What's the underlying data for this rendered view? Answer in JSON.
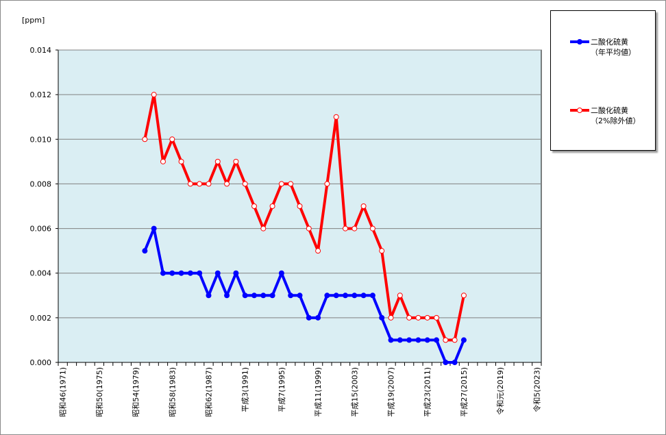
{
  "chart_data": {
    "type": "line",
    "unit_label": "[ppm]",
    "ylim": [
      0,
      0.014
    ],
    "yticks": [
      "0.000",
      "0.002",
      "0.004",
      "0.006",
      "0.008",
      "0.010",
      "0.012",
      "0.014"
    ],
    "x_start_year": 1971,
    "x_end_year": 2023,
    "xtick_labels": [
      "昭和46(1971)",
      "昭和50(1975)",
      "昭和54(1979)",
      "昭和58(1983)",
      "昭和62(1987)",
      "平成3(1991)",
      "平成7(1995)",
      "平成11(1999)",
      "平成15(2003)",
      "平成19(2007)",
      "平成23(2011)",
      "平成27(2015)",
      "令和元(2019)",
      "令和5(2023)"
    ],
    "grid": true,
    "legend_position": "right",
    "x": [
      1980,
      1981,
      1982,
      1983,
      1984,
      1985,
      1986,
      1987,
      1988,
      1989,
      1990,
      1991,
      1992,
      1993,
      1994,
      1995,
      1996,
      1997,
      1998,
      1999,
      2000,
      2001,
      2002,
      2003,
      2004,
      2005,
      2006,
      2007,
      2008,
      2009,
      2010,
      2011,
      2012,
      2013,
      2014,
      2015
    ],
    "series": [
      {
        "name": "二酸化硫黄",
        "name2": "（年平均値）",
        "color": "#0000ff",
        "marker": "filled",
        "values": [
          0.005,
          0.006,
          0.004,
          0.004,
          0.004,
          0.004,
          0.004,
          0.003,
          0.004,
          0.003,
          0.004,
          0.003,
          0.003,
          0.003,
          0.003,
          0.004,
          0.003,
          0.003,
          0.002,
          0.002,
          0.003,
          0.003,
          0.003,
          0.003,
          0.003,
          0.003,
          0.002,
          0.001,
          0.001,
          0.001,
          0.001,
          0.001,
          0.001,
          0.0,
          0.0,
          0.001
        ]
      },
      {
        "name": "二酸化硫黄",
        "name2": "（2%除外値）",
        "color": "#ff0000",
        "marker": "open",
        "values": [
          0.01,
          0.012,
          0.009,
          0.01,
          0.009,
          0.008,
          0.008,
          0.008,
          0.009,
          0.008,
          0.009,
          0.008,
          0.007,
          0.006,
          0.007,
          0.008,
          0.008,
          0.007,
          0.006,
          0.005,
          0.008,
          0.011,
          0.006,
          0.006,
          0.007,
          0.006,
          0.005,
          0.002,
          0.003,
          0.002,
          0.002,
          0.002,
          0.002,
          0.001,
          0.001,
          0.003
        ]
      }
    ]
  }
}
